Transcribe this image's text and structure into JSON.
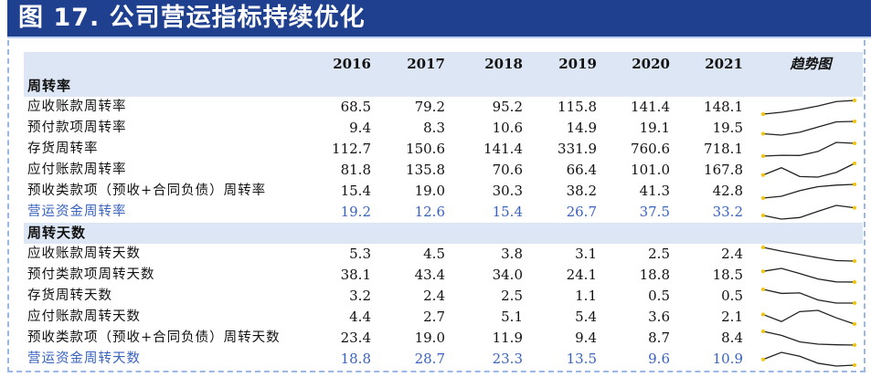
{
  "header": {
    "title": "图 17. 公司营运指标持续优化"
  },
  "table": {
    "trend_label": "趋势图",
    "years": [
      "2016",
      "2017",
      "2018",
      "2019",
      "2020",
      "2021"
    ],
    "sections": [
      {
        "title": "周转率",
        "rows": [
          {
            "label": "应收账款周转率",
            "values": [
              "68.5",
              "79.2",
              "95.2",
              "115.8",
              "141.4",
              "148.1"
            ],
            "highlight": false
          },
          {
            "label": "预付款项周转率",
            "values": [
              "9.4",
              "8.3",
              "10.6",
              "14.9",
              "19.1",
              "19.5"
            ],
            "highlight": false
          },
          {
            "label": "存货周转率",
            "values": [
              "112.7",
              "150.6",
              "141.4",
              "331.9",
              "760.6",
              "718.1"
            ],
            "highlight": false
          },
          {
            "label": "应付账款周转率",
            "values": [
              "81.8",
              "135.8",
              "70.6",
              "66.4",
              "101.0",
              "167.8"
            ],
            "highlight": false
          },
          {
            "label": "预收类款项（预收+合同负债）周转率",
            "values": [
              "15.4",
              "19.0",
              "30.3",
              "38.2",
              "41.3",
              "42.8"
            ],
            "highlight": false
          },
          {
            "label": "营运资金周转率",
            "values": [
              "19.2",
              "12.6",
              "15.4",
              "26.7",
              "37.5",
              "33.2"
            ],
            "highlight": true
          }
        ]
      },
      {
        "title": "周转天数",
        "rows": [
          {
            "label": "应收账款周转天数",
            "values": [
              "5.3",
              "4.5",
              "3.8",
              "3.1",
              "2.5",
              "2.4"
            ],
            "highlight": false
          },
          {
            "label": "预付类款项周转天数",
            "values": [
              "38.1",
              "43.4",
              "34.0",
              "24.1",
              "18.8",
              "18.5"
            ],
            "highlight": false
          },
          {
            "label": "存货周转天数",
            "values": [
              "3.2",
              "2.4",
              "2.5",
              "1.1",
              "0.5",
              "0.5"
            ],
            "highlight": false
          },
          {
            "label": "应付账款周转天数",
            "values": [
              "4.4",
              "2.7",
              "5.1",
              "5.4",
              "3.6",
              "2.1"
            ],
            "highlight": false
          },
          {
            "label": "预收类款项（预收+合同负债）周转天数",
            "values": [
              "23.4",
              "19.0",
              "11.9",
              "9.4",
              "8.7",
              "8.4"
            ],
            "highlight": false
          },
          {
            "label": "营运资金周转天数",
            "values": [
              "18.8",
              "28.7",
              "23.3",
              "13.5",
              "9.6",
              "10.9"
            ],
            "highlight": true
          }
        ]
      }
    ]
  }
}
